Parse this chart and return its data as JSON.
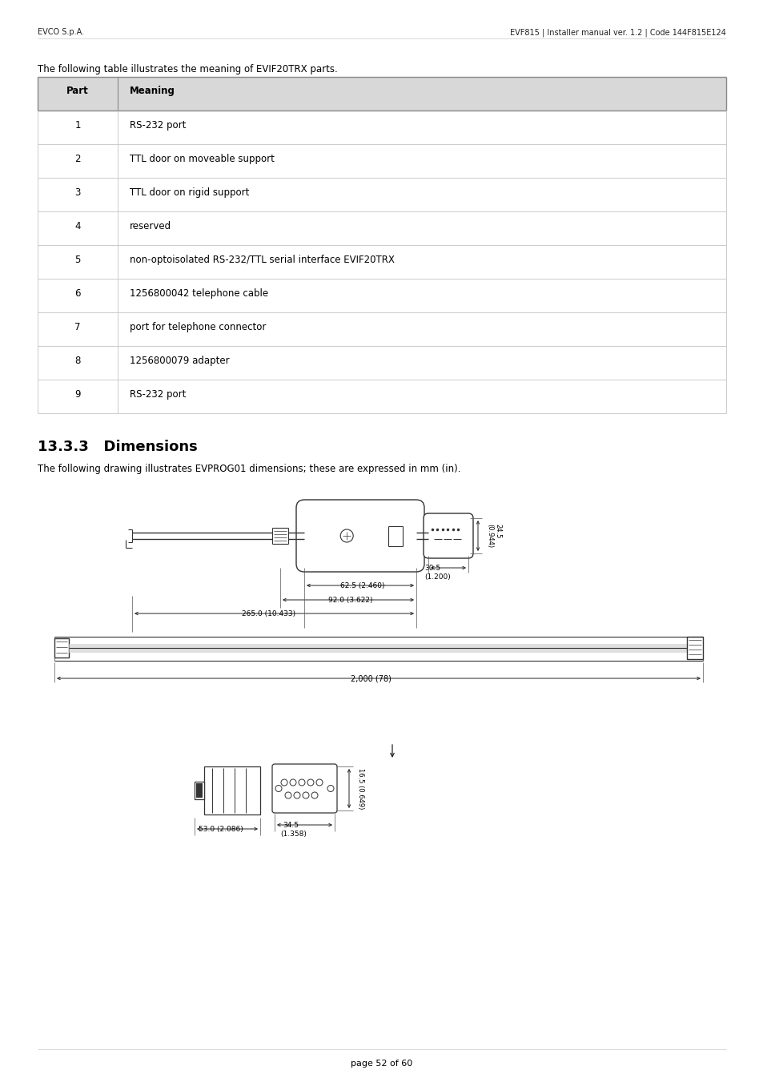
{
  "header_left": "EVCO S.p.A.",
  "header_right": "EVF815 | Installer manual ver. 1.2 | Code 144F815E124",
  "intro_text": "The following table illustrates the meaning of EVIF20TRX parts.",
  "table_header": [
    "Part",
    "Meaning"
  ],
  "table_rows": [
    [
      "1",
      "RS-232 port"
    ],
    [
      "2",
      "TTL door on moveable support"
    ],
    [
      "3",
      "TTL door on rigid support"
    ],
    [
      "4",
      "reserved"
    ],
    [
      "5",
      "non-optoisolated RS-232/TTL serial interface EVIF20TRX"
    ],
    [
      "6",
      "1256800042 telephone cable"
    ],
    [
      "7",
      "port for telephone connector"
    ],
    [
      "8",
      "1256800079 adapter"
    ],
    [
      "9",
      "RS-232 port"
    ]
  ],
  "section_title": "13.3.3   Dimensions",
  "section_text": "The following drawing illustrates EVPROG01 dimensions; these are expressed in mm (in).",
  "footer_text": "page 52 of 60",
  "bg_color": "#ffffff",
  "header_bg": "#d8d8d8",
  "table_border_color": "#999999",
  "row_border_color": "#cccccc",
  "text_color": "#000000"
}
